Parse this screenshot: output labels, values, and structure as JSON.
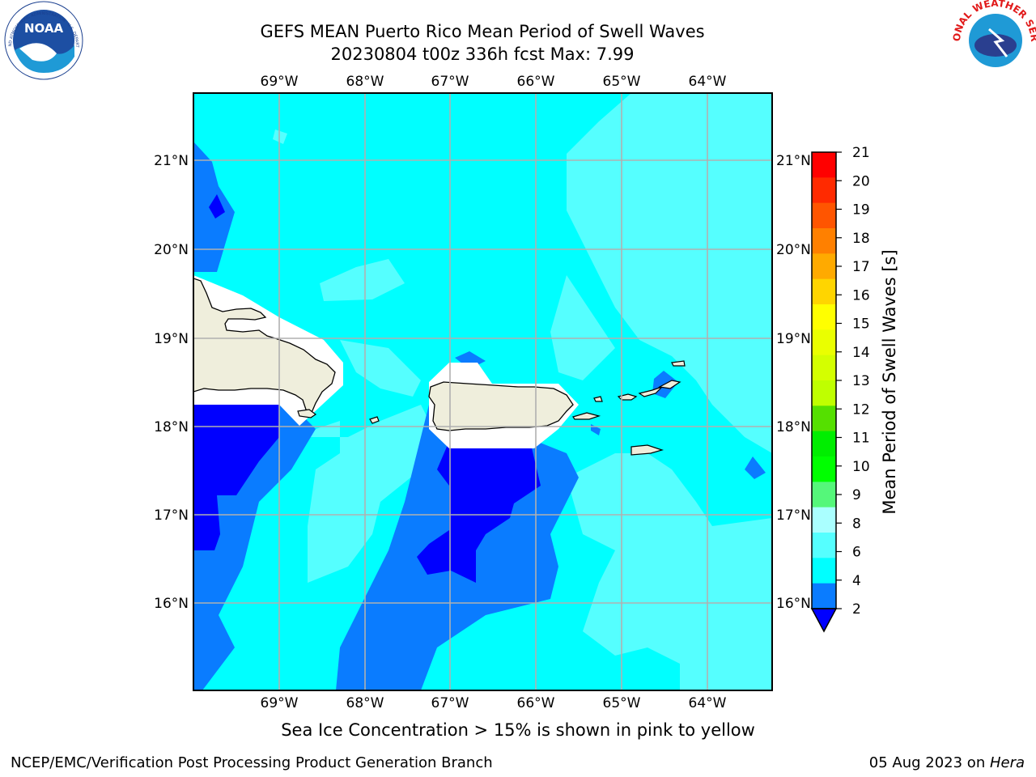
{
  "header": {
    "title_line1": "GEFS MEAN Puerto Rico Mean Period of Swell Waves",
    "title_line2": "20230804 t00z 336h fcst   Max: 7.99"
  },
  "logos": {
    "left": "NOAA",
    "left_ring": "NATIONAL OCEANIC AND ATMOSPHERIC ADMINISTRATION · U.S. DEPARTMENT OF COMMERCE",
    "right": "NATIONAL WEATHER SERVICE"
  },
  "map": {
    "lon_labels": [
      "69°W",
      "68°W",
      "67°W",
      "66°W",
      "65°W",
      "64°W"
    ],
    "lat_labels": [
      "21°N",
      "20°N",
      "19°N",
      "18°N",
      "17°N",
      "16°N"
    ],
    "colors": {
      "land": "#efeedc",
      "band_2_4": "#0a7cff",
      "band_below_2": "#0000ff",
      "band_4_6": "#00ffff",
      "band_6_8": "#55ffff",
      "mask": "#ffffff",
      "grid": "#b0b0b0"
    }
  },
  "colorbar": {
    "label": "Mean Period of Swell Waves [s]",
    "ticks": [
      "21",
      "20",
      "19",
      "18",
      "17",
      "16",
      "15",
      "14",
      "13",
      "12",
      "11",
      "10",
      "9",
      "8",
      "6",
      "4",
      "2"
    ],
    "colors": [
      "#ff0000",
      "#ff2a00",
      "#ff5500",
      "#ff8000",
      "#ffaa00",
      "#ffd500",
      "#ffff00",
      "#eaff00",
      "#d4ff00",
      "#bfff00",
      "#55e000",
      "#00ee00",
      "#00ff00",
      "#55f77a",
      "#aaffff",
      "#55ffff",
      "#00ffff",
      "#0a7cff"
    ],
    "extend_color": "#0000ff"
  },
  "caption": "Sea Ice Concentration > 15% is shown in pink to yellow",
  "footer": {
    "left": "NCEP/EMC/Verification Post Processing Product Generation Branch",
    "date": "05 Aug 2023 on ",
    "machine": "Hera"
  }
}
